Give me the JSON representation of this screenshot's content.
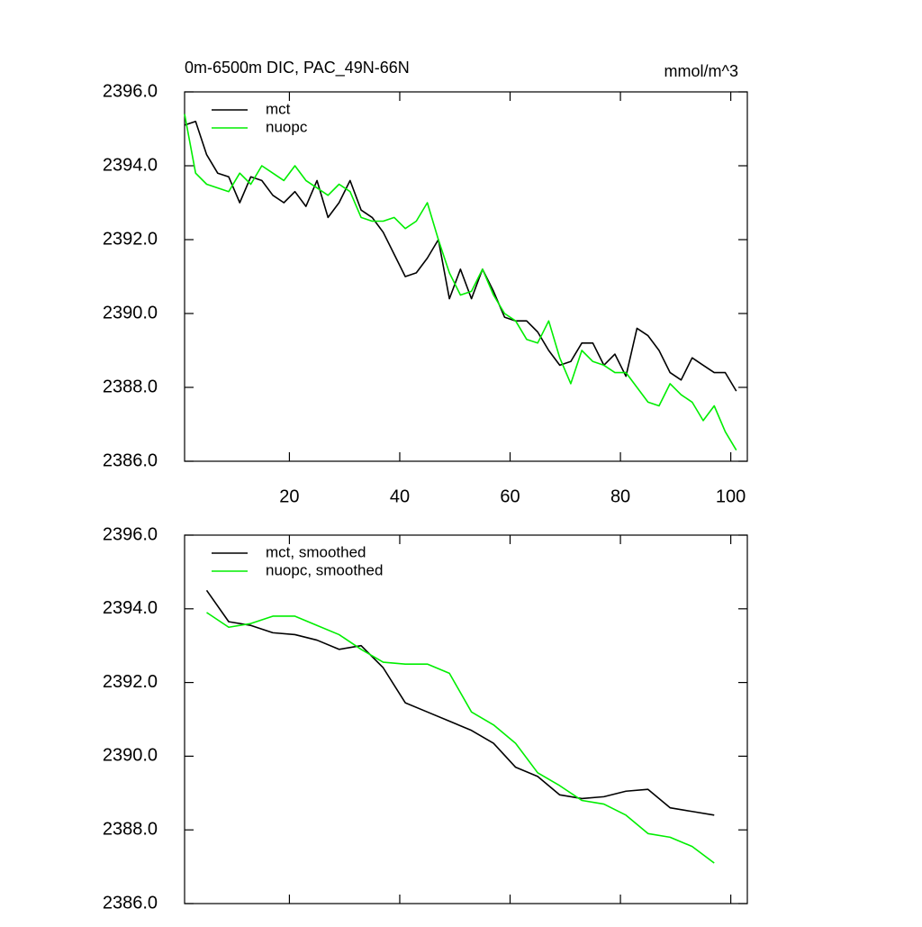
{
  "chart_data": [
    {
      "type": "line",
      "title": "0m-6500m DIC, PAC_49N-66N",
      "units_label": "mmol/m^3",
      "x": [
        1,
        3,
        5,
        7,
        9,
        11,
        13,
        15,
        17,
        19,
        21,
        23,
        25,
        27,
        29,
        31,
        33,
        35,
        37,
        39,
        41,
        43,
        45,
        47,
        49,
        51,
        53,
        55,
        57,
        59,
        61,
        63,
        65,
        67,
        69,
        71,
        73,
        75,
        77,
        79,
        81,
        83,
        85,
        87,
        89,
        91,
        93,
        95,
        97,
        99,
        101
      ],
      "series": [
        {
          "name": "mct",
          "color": "#000000",
          "values": [
            2395.1,
            2395.2,
            2394.3,
            2393.8,
            2393.7,
            2393.0,
            2393.7,
            2393.6,
            2393.2,
            2393.0,
            2393.3,
            2392.9,
            2393.6,
            2392.6,
            2393.0,
            2393.6,
            2392.8,
            2392.6,
            2392.2,
            2391.6,
            2391.0,
            2391.1,
            2391.5,
            2392.0,
            2390.4,
            2391.2,
            2390.4,
            2391.2,
            2390.6,
            2389.9,
            2389.8,
            2389.8,
            2389.5,
            2389.0,
            2388.6,
            2388.7,
            2389.2,
            2389.2,
            2388.6,
            2388.9,
            2388.3,
            2389.6,
            2389.4,
            2389.0,
            2388.4,
            2388.2,
            2388.8,
            2388.6,
            2388.4,
            2388.4,
            2387.9
          ]
        },
        {
          "name": "nuopc",
          "color": "#00ee00",
          "values": [
            2395.4,
            2393.8,
            2393.5,
            2393.4,
            2393.3,
            2393.8,
            2393.5,
            2394.0,
            2393.8,
            2393.6,
            2394.0,
            2393.6,
            2393.4,
            2393.2,
            2393.5,
            2393.3,
            2392.6,
            2392.5,
            2392.5,
            2392.6,
            2392.3,
            2392.5,
            2393.0,
            2392.0,
            2391.1,
            2390.5,
            2390.6,
            2391.2,
            2390.5,
            2390.0,
            2389.8,
            2389.3,
            2389.2,
            2389.8,
            2388.8,
            2388.1,
            2389.0,
            2388.7,
            2388.6,
            2388.4,
            2388.4,
            2388.0,
            2387.6,
            2387.5,
            2388.1,
            2387.8,
            2387.6,
            2387.1,
            2387.5,
            2386.8,
            2386.3
          ]
        }
      ],
      "xlim": [
        1,
        103
      ],
      "xticks": [
        20,
        40,
        60,
        80,
        100
      ],
      "ylim": [
        2386,
        2396
      ],
      "yticks": [
        {
          "value": 2386,
          "label": "2386.0"
        },
        {
          "value": 2388,
          "label": "2388.0"
        },
        {
          "value": 2390,
          "label": "2390.0"
        },
        {
          "value": 2392,
          "label": "2392.0"
        },
        {
          "value": 2394,
          "label": "2394.0"
        },
        {
          "value": 2396,
          "label": "2396.0"
        }
      ],
      "xtick_labels_visible": true,
      "legend": "upper left"
    },
    {
      "type": "line",
      "x": [
        5,
        9,
        13,
        17,
        21,
        25,
        29,
        33,
        37,
        41,
        45,
        49,
        53,
        57,
        61,
        65,
        69,
        73,
        77,
        81,
        85,
        89,
        93,
        97
      ],
      "series": [
        {
          "name": "mct, smoothed",
          "color": "#000000",
          "values": [
            2394.5,
            2393.65,
            2393.55,
            2393.35,
            2393.3,
            2393.15,
            2392.9,
            2393.0,
            2392.4,
            2391.45,
            2391.2,
            2390.95,
            2390.7,
            2390.35,
            2389.7,
            2389.45,
            2388.95,
            2388.85,
            2388.9,
            2389.05,
            2389.1,
            2388.6,
            2388.5,
            2388.4
          ]
        },
        {
          "name": "nuopc, smoothed",
          "color": "#00ee00",
          "values": [
            2393.9,
            2393.5,
            2393.6,
            2393.8,
            2393.8,
            2393.55,
            2393.3,
            2392.9,
            2392.55,
            2392.5,
            2392.5,
            2392.25,
            2391.2,
            2390.85,
            2390.35,
            2389.55,
            2389.2,
            2388.8,
            2388.7,
            2388.4,
            2387.9,
            2387.8,
            2387.55,
            2387.1
          ]
        }
      ],
      "xlim": [
        1,
        103
      ],
      "xticks": [
        20,
        40,
        60,
        80,
        100
      ],
      "ylim": [
        2386,
        2396
      ],
      "yticks": [
        {
          "value": 2386,
          "label": "2386.0"
        },
        {
          "value": 2388,
          "label": "2388.0"
        },
        {
          "value": 2390,
          "label": "2390.0"
        },
        {
          "value": 2392,
          "label": "2392.0"
        },
        {
          "value": 2394,
          "label": "2394.0"
        },
        {
          "value": 2396,
          "label": "2396.0"
        }
      ],
      "xtick_labels_visible": false,
      "legend": "upper left"
    }
  ]
}
